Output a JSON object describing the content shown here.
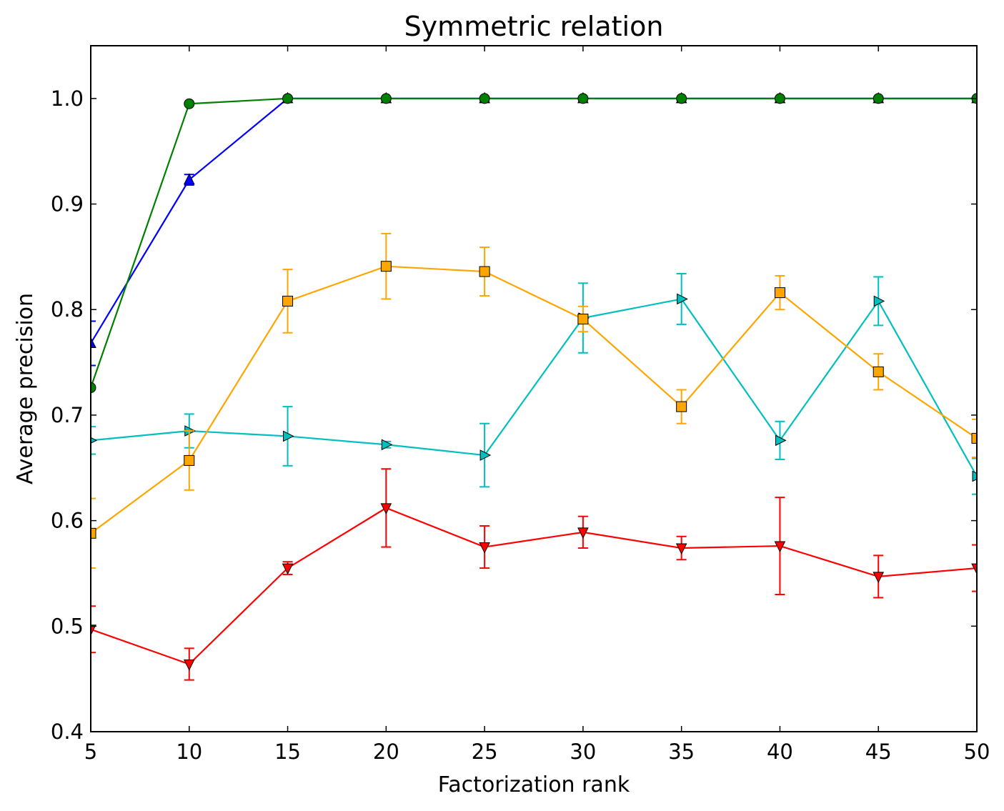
{
  "chart_data": {
    "type": "line",
    "title": "Symmetric relation",
    "xlabel": "Factorization rank",
    "ylabel": "Average precision",
    "xlim": [
      5,
      50
    ],
    "ylim": [
      0.4,
      1.05
    ],
    "xticks": [
      5,
      10,
      15,
      20,
      25,
      30,
      35,
      40,
      45,
      50
    ],
    "yticks": [
      0.4,
      0.5,
      0.6,
      0.7,
      0.8,
      0.9,
      1.0
    ],
    "xtick_labels": [
      "5",
      "10",
      "15",
      "20",
      "25",
      "30",
      "35",
      "40",
      "45",
      "50"
    ],
    "ytick_labels": [
      "0.4",
      "0.5",
      "0.6",
      "0.7",
      "0.8",
      "0.9",
      "1.0"
    ],
    "grid": false,
    "x": [
      5,
      10,
      15,
      20,
      25,
      30,
      35,
      40,
      45,
      50
    ],
    "series": [
      {
        "color": "#ff0000",
        "marker": "triangle-down",
        "values": [
          0.497,
          0.464,
          0.555,
          0.612,
          0.575,
          0.589,
          0.574,
          0.576,
          0.547,
          0.555
        ],
        "errors": [
          0.022,
          0.015,
          0.006,
          0.037,
          0.02,
          0.015,
          0.011,
          0.046,
          0.02,
          0.022
        ]
      },
      {
        "color": "#00bfbf",
        "marker": "triangle-right",
        "values": [
          0.676,
          0.685,
          0.68,
          0.672,
          0.662,
          0.792,
          0.81,
          0.676,
          0.808,
          0.642
        ],
        "errors": [
          0.013,
          0.016,
          0.028,
          0.003,
          0.03,
          0.033,
          0.024,
          0.018,
          0.023,
          0.017
        ]
      },
      {
        "color": "#ffa500",
        "marker": "square",
        "values": [
          0.588,
          0.657,
          0.808,
          0.841,
          0.836,
          0.791,
          0.708,
          0.816,
          0.741,
          0.678
        ],
        "errors": [
          0.033,
          0.028,
          0.03,
          0.031,
          0.023,
          0.012,
          0.016,
          0.016,
          0.017,
          0.018
        ]
      },
      {
        "color": "#0000ff",
        "marker": "triangle-up",
        "values": [
          0.768,
          0.923,
          1.0,
          1.0,
          1.0,
          1.0,
          1.0,
          1.0,
          1.0,
          1.0
        ],
        "errors": [
          0.021,
          0.005,
          0,
          0,
          0,
          0,
          0,
          0,
          0,
          0
        ]
      },
      {
        "color": "#008000",
        "marker": "circle",
        "values": [
          0.726,
          0.995,
          1.0,
          1.0,
          1.0,
          1.0,
          1.0,
          1.0,
          1.0,
          1.0
        ],
        "errors": [
          0,
          0,
          0,
          0,
          0,
          0,
          0,
          0,
          0,
          0
        ]
      }
    ]
  }
}
